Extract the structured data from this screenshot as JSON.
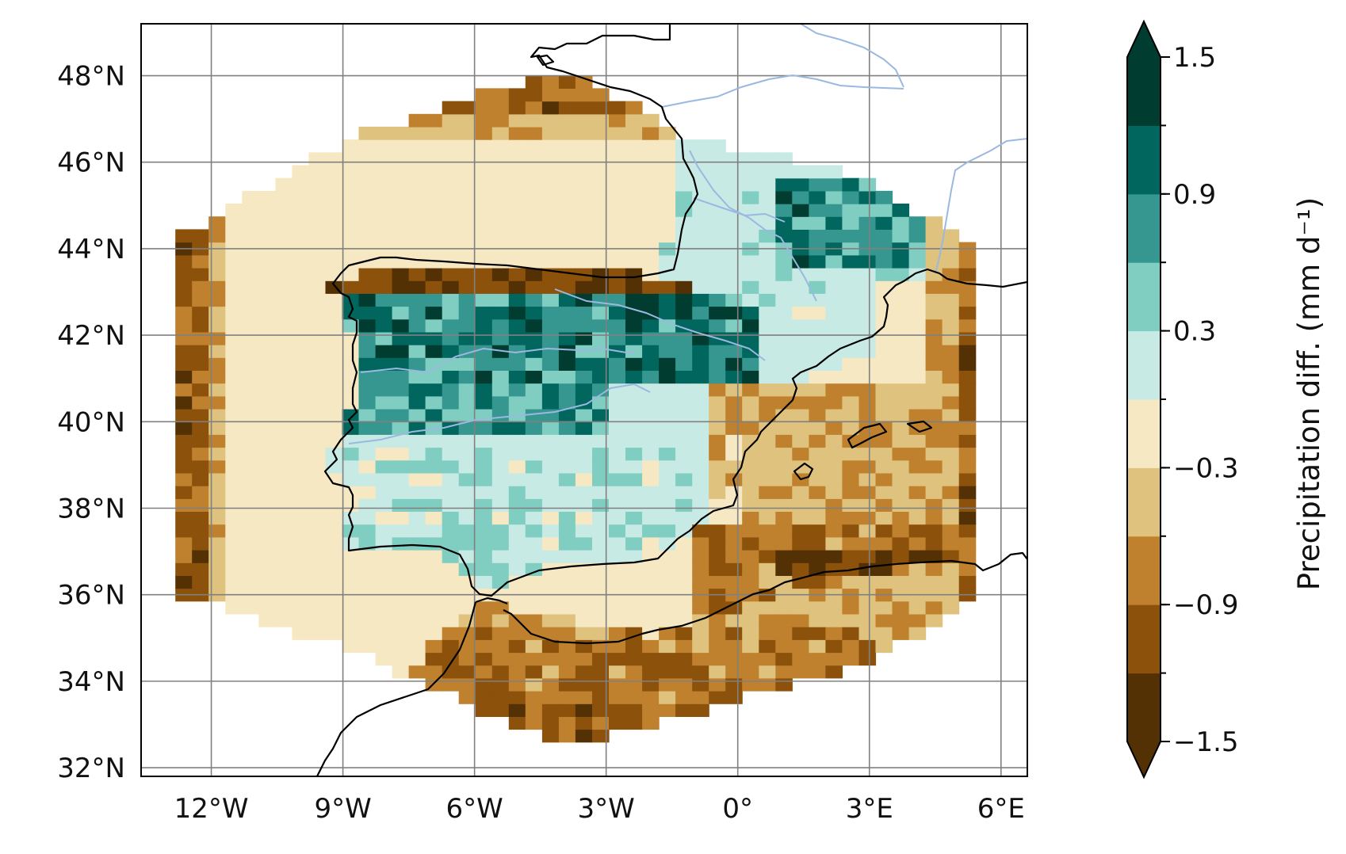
{
  "map": {
    "lon_range": [
      -13.6,
      6.6
    ],
    "lat_range": [
      31.8,
      49.2
    ],
    "x_tick_labels": [
      {
        "lon": -12,
        "label": "12°W"
      },
      {
        "lon": -9,
        "label": "9°W"
      },
      {
        "lon": -6,
        "label": "6°W"
      },
      {
        "lon": -3,
        "label": "3°W"
      },
      {
        "lon": 0,
        "label": "0°"
      },
      {
        "lon": 3,
        "label": "3°E"
      },
      {
        "lon": 6,
        "label": "6°E"
      }
    ],
    "y_tick_labels": [
      {
        "lat": 48,
        "label": "48°N"
      },
      {
        "lat": 46,
        "label": "46°N"
      },
      {
        "lat": 44,
        "label": "44°N"
      },
      {
        "lat": 42,
        "label": "42°N"
      },
      {
        "lat": 40,
        "label": "40°N"
      },
      {
        "lat": 38,
        "label": "38°N"
      },
      {
        "lat": 36,
        "label": "36°N"
      },
      {
        "lat": 34,
        "label": "34°N"
      },
      {
        "lat": 32,
        "label": "32°N"
      }
    ],
    "gridlines": true
  },
  "colorbar": {
    "label": "Precipitation diff. (mm d⁻¹)",
    "tick_labels": [
      "1.5",
      "0.9",
      "0.3",
      "−0.3",
      "−0.9",
      "−1.5"
    ],
    "levels": [
      -1.5,
      -1.2,
      -0.9,
      -0.6,
      -0.3,
      0.0,
      0.3,
      0.6,
      0.9,
      1.2,
      1.5
    ],
    "colors": [
      "#543005",
      "#8c510a",
      "#bf812d",
      "#dfc27d",
      "#f6e8c3",
      "#c7eae5",
      "#80cdc1",
      "#35978f",
      "#01665e",
      "#003c30"
    ],
    "under_color": "#543005",
    "over_color": "#003c30",
    "extend": "both"
  },
  "colors": {
    "coastline": "#000000",
    "river": "#9bb8e0",
    "grid": "#808080"
  }
}
